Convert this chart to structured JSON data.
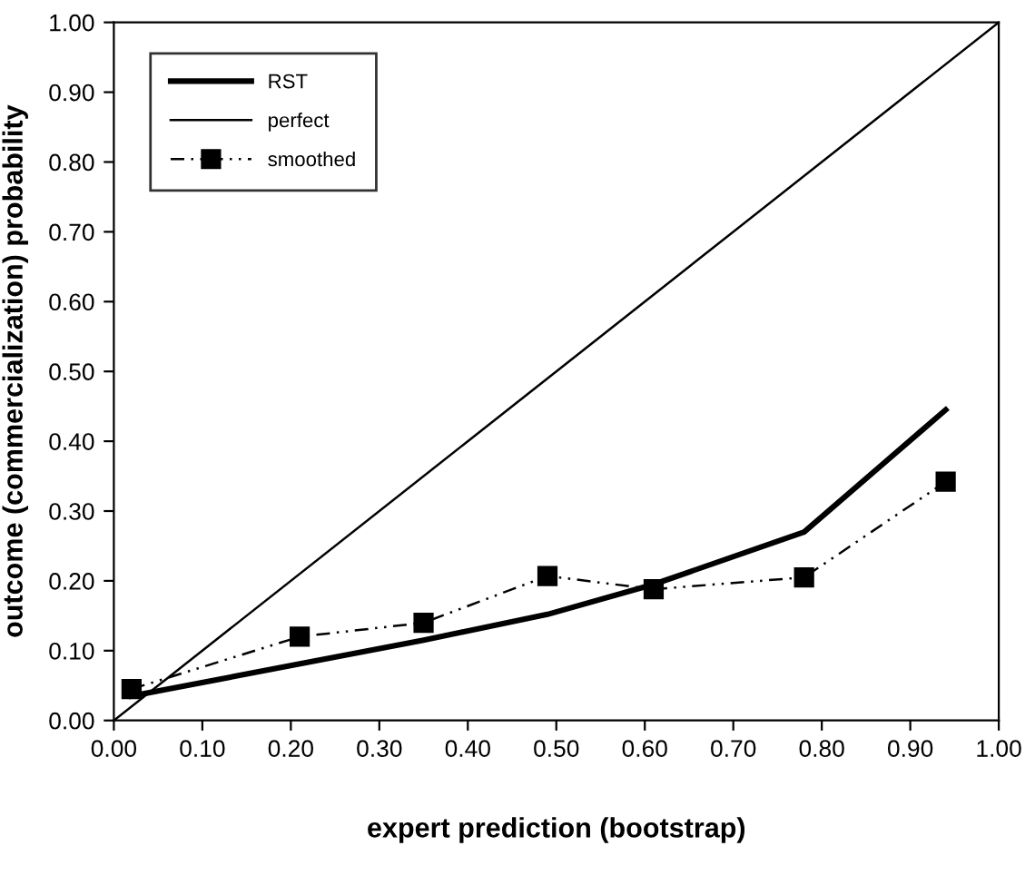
{
  "chart_data": {
    "type": "line",
    "xlabel": "expert prediction (bootstrap)",
    "ylabel": "outcome (commercialization) probability",
    "xlim": [
      0,
      1
    ],
    "ylim": [
      0,
      1
    ],
    "xticks": [
      {
        "value": 0,
        "label": "0.00"
      },
      {
        "value": 0.1,
        "label": "0.10"
      },
      {
        "value": 0.2,
        "label": "0.20"
      },
      {
        "value": 0.3,
        "label": "0.30"
      },
      {
        "value": 0.4,
        "label": "0.40"
      },
      {
        "value": 0.5,
        "label": "0.50"
      },
      {
        "value": 0.6,
        "label": "0.60"
      },
      {
        "value": 0.7,
        "label": "0.70"
      },
      {
        "value": 0.8,
        "label": "0.80"
      },
      {
        "value": 0.9,
        "label": "0.90"
      },
      {
        "value": 1,
        "label": "1.00"
      }
    ],
    "yticks": [
      {
        "value": 0,
        "label": "0.00"
      },
      {
        "value": 0.1,
        "label": "0.10"
      },
      {
        "value": 0.2,
        "label": "0.20"
      },
      {
        "value": 0.3,
        "label": "0.30"
      },
      {
        "value": 0.4,
        "label": "0.40"
      },
      {
        "value": 0.5,
        "label": "0.50"
      },
      {
        "value": 0.6,
        "label": "0.60"
      },
      {
        "value": 0.7,
        "label": "0.70"
      },
      {
        "value": 0.8,
        "label": "0.80"
      },
      {
        "value": 0.9,
        "label": "0.90"
      },
      {
        "value": 1,
        "label": "1.00"
      }
    ],
    "grid": false,
    "legend": "top left",
    "series": [
      {
        "name": "RST",
        "color": "#000000",
        "x": [
          0.02,
          0.35,
          0.49,
          0.61,
          0.78,
          0.94
        ],
        "values": [
          0.035,
          0.115,
          0.152,
          0.195,
          0.27,
          0.445
        ],
        "marker": "none",
        "line_style": "solid"
      },
      {
        "name": "perfect",
        "color": "#000000",
        "x": [
          0,
          1
        ],
        "values": [
          0,
          1
        ],
        "marker": "none",
        "line_style": "solid"
      },
      {
        "name": "smoothed",
        "color": "#000000",
        "x": [
          0.02,
          0.21,
          0.35,
          0.49,
          0.61,
          0.78,
          0.94
        ],
        "values": [
          0.045,
          0.12,
          0.14,
          0.207,
          0.188,
          0.205,
          0.342
        ],
        "marker": "square",
        "line_style": "dashed"
      }
    ]
  }
}
